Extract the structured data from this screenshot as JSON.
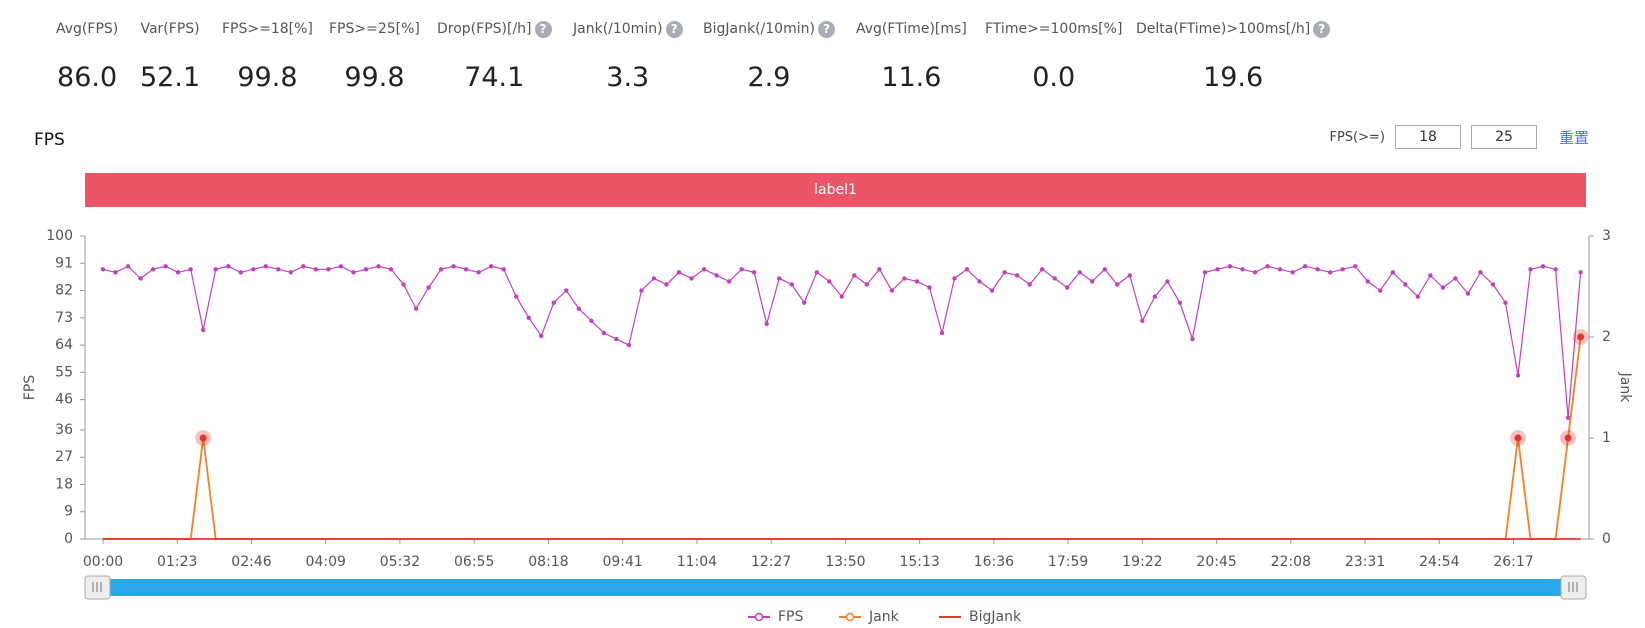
{
  "metrics": [
    {
      "label": "Avg(FPS)",
      "value": "86.0"
    },
    {
      "label": "Var(FPS)",
      "value": "52.1"
    },
    {
      "label": "FPS>=18[%]",
      "value": "99.8"
    },
    {
      "label": "FPS>=25[%]",
      "value": "99.8"
    },
    {
      "label": "Drop(FPS)[/h]",
      "value": "74.1"
    },
    {
      "label": "Jank(/10min)",
      "value": "3.3"
    },
    {
      "label": "BigJank(/10min)",
      "value": "2.9"
    },
    {
      "label": "Avg(FTime)[ms]",
      "value": "11.6"
    },
    {
      "label": "FTime>=100ms[%]",
      "value": "0.0"
    },
    {
      "label": "Delta(FTime)>100ms[/h]",
      "value": "19.6"
    }
  ],
  "controls": {
    "label": "FPS(>=)",
    "threshold1": "18",
    "threshold2": "25",
    "reset": "重置"
  },
  "chart_data": {
    "type": "line",
    "title": "FPS",
    "banner": "label1",
    "ylabel": "FPS",
    "y2label": "Jank",
    "xlim": [
      0,
      1658
    ],
    "ylim": [
      0,
      100
    ],
    "y2lim": [
      0,
      3
    ],
    "yticks": [
      0,
      9,
      18,
      27,
      36,
      46,
      55,
      64,
      73,
      82,
      91,
      100
    ],
    "y2ticks": [
      0,
      1,
      2,
      3
    ],
    "xticks": [
      {
        "value": 0,
        "label": "00:00"
      },
      {
        "value": 83,
        "label": "01:23"
      },
      {
        "value": 166,
        "label": "02:46"
      },
      {
        "value": 249,
        "label": "04:09"
      },
      {
        "value": 332,
        "label": "05:32"
      },
      {
        "value": 415,
        "label": "06:55"
      },
      {
        "value": 498,
        "label": "08:18"
      },
      {
        "value": 581,
        "label": "09:41"
      },
      {
        "value": 664,
        "label": "11:04"
      },
      {
        "value": 747,
        "label": "12:27"
      },
      {
        "value": 830,
        "label": "13:50"
      },
      {
        "value": 913,
        "label": "15:13"
      },
      {
        "value": 996,
        "label": "16:36"
      },
      {
        "value": 1079,
        "label": "17:59"
      },
      {
        "value": 1162,
        "label": "19:22"
      },
      {
        "value": 1245,
        "label": "20:45"
      },
      {
        "value": 1328,
        "label": "22:08"
      },
      {
        "value": 1411,
        "label": "23:31"
      },
      {
        "value": 1494,
        "label": "24:54"
      },
      {
        "value": 1577,
        "label": "26:17"
      }
    ],
    "x": [
      0,
      14,
      28,
      42,
      56,
      70,
      84,
      98,
      112,
      126,
      140,
      154,
      168,
      182,
      196,
      210,
      224,
      238,
      252,
      266,
      280,
      294,
      308,
      322,
      336,
      350,
      364,
      378,
      392,
      406,
      420,
      434,
      448,
      462,
      476,
      490,
      504,
      518,
      532,
      546,
      560,
      574,
      588,
      602,
      616,
      630,
      644,
      658,
      672,
      686,
      700,
      714,
      728,
      742,
      756,
      770,
      784,
      798,
      812,
      826,
      840,
      854,
      868,
      882,
      896,
      910,
      924,
      938,
      952,
      966,
      980,
      994,
      1008,
      1022,
      1036,
      1050,
      1064,
      1078,
      1092,
      1106,
      1120,
      1134,
      1148,
      1162,
      1176,
      1190,
      1204,
      1218,
      1232,
      1246,
      1260,
      1274,
      1288,
      1302,
      1316,
      1330,
      1344,
      1358,
      1372,
      1386,
      1400,
      1414,
      1428,
      1442,
      1456,
      1470,
      1484,
      1498,
      1512,
      1526,
      1540,
      1554,
      1568,
      1582,
      1596,
      1610,
      1624,
      1638,
      1652
    ],
    "legend": "bottom",
    "series": [
      {
        "name": "FPS",
        "color": "#c23fbd",
        "axis": "y",
        "values": [
          89,
          88,
          90,
          86,
          89,
          90,
          88,
          89,
          69,
          89,
          90,
          88,
          89,
          90,
          89,
          88,
          90,
          89,
          89,
          90,
          88,
          89,
          90,
          89,
          84,
          76,
          83,
          89,
          90,
          89,
          88,
          90,
          89,
          80,
          73,
          67,
          78,
          82,
          76,
          72,
          68,
          66,
          64,
          82,
          86,
          84,
          88,
          86,
          89,
          87,
          85,
          89,
          88,
          71,
          86,
          84,
          78,
          88,
          85,
          80,
          87,
          84,
          89,
          82,
          86,
          85,
          83,
          68,
          86,
          89,
          85,
          82,
          88,
          87,
          84,
          89,
          86,
          83,
          88,
          85,
          89,
          84,
          87,
          72,
          80,
          85,
          78,
          66,
          88,
          89,
          90,
          89,
          88,
          90,
          89,
          88,
          90,
          89,
          88,
          89,
          90,
          85,
          82,
          88,
          84,
          80,
          87,
          83,
          86,
          81,
          88,
          84,
          78,
          54,
          89,
          90,
          89,
          40,
          88
        ]
      },
      {
        "name": "Jank",
        "color": "#f0802a",
        "axis": "y2",
        "values": [
          0,
          0,
          0,
          0,
          0,
          0,
          0,
          0,
          1,
          0,
          0,
          0,
          0,
          0,
          0,
          0,
          0,
          0,
          0,
          0,
          0,
          0,
          0,
          0,
          0,
          0,
          0,
          0,
          0,
          0,
          0,
          0,
          0,
          0,
          0,
          0,
          0,
          0,
          0,
          0,
          0,
          0,
          0,
          0,
          0,
          0,
          0,
          0,
          0,
          0,
          0,
          0,
          0,
          0,
          0,
          0,
          0,
          0,
          0,
          0,
          0,
          0,
          0,
          0,
          0,
          0,
          0,
          0,
          0,
          0,
          0,
          0,
          0,
          0,
          0,
          0,
          0,
          0,
          0,
          0,
          0,
          0,
          0,
          0,
          0,
          0,
          0,
          0,
          0,
          0,
          0,
          0,
          0,
          0,
          0,
          0,
          0,
          0,
          0,
          0,
          0,
          0,
          0,
          0,
          0,
          0,
          0,
          0,
          0,
          0,
          0,
          0,
          0,
          1,
          0,
          0,
          0,
          1,
          2
        ]
      },
      {
        "name": "BigJank",
        "color": "#e3342f",
        "axis": "y2",
        "values": [
          0,
          0,
          0,
          0,
          0,
          0,
          0,
          0,
          0,
          0,
          0,
          0,
          0,
          0,
          0,
          0,
          0,
          0,
          0,
          0,
          0,
          0,
          0,
          0,
          0,
          0,
          0,
          0,
          0,
          0,
          0,
          0,
          0,
          0,
          0,
          0,
          0,
          0,
          0,
          0,
          0,
          0,
          0,
          0,
          0,
          0,
          0,
          0,
          0,
          0,
          0,
          0,
          0,
          0,
          0,
          0,
          0,
          0,
          0,
          0,
          0,
          0,
          0,
          0,
          0,
          0,
          0,
          0,
          0,
          0,
          0,
          0,
          0,
          0,
          0,
          0,
          0,
          0,
          0,
          0,
          0,
          0,
          0,
          0,
          0,
          0,
          0,
          0,
          0,
          0,
          0,
          0,
          0,
          0,
          0,
          0,
          0,
          0,
          0,
          0,
          0,
          0,
          0,
          0,
          0,
          0,
          0,
          0,
          0,
          0,
          0,
          0,
          0,
          0,
          0,
          0,
          0,
          0,
          0
        ]
      }
    ]
  }
}
